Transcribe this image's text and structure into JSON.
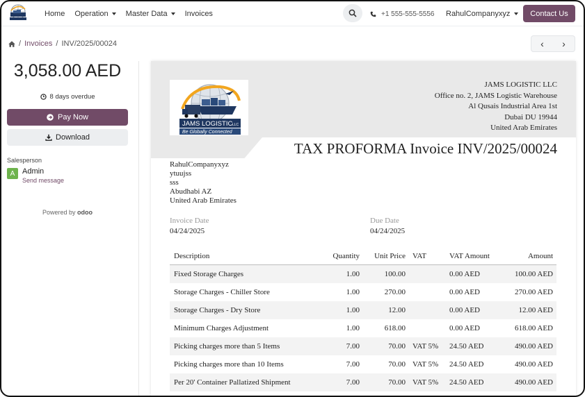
{
  "nav": {
    "items": [
      {
        "label": "Home",
        "dropdown": false
      },
      {
        "label": "Operation",
        "dropdown": true
      },
      {
        "label": "Master Data",
        "dropdown": true
      },
      {
        "label": "Invoices",
        "dropdown": false
      }
    ],
    "phone": "+1 555-555-5556",
    "company": "RahulCompanyxyz",
    "contact_label": "Contact Us"
  },
  "breadcrumb": {
    "invoices": "Invoices",
    "current": "INV/2025/00024"
  },
  "sidebar": {
    "amount": "3,058.00 AED",
    "overdue": "8 days overdue",
    "pay_now": "Pay Now",
    "download": "Download",
    "salesperson_label": "Salesperson",
    "avatar_letter": "A",
    "salesperson_name": "Admin",
    "send_message": "Send message",
    "powered_by": "Powered by",
    "powered_brand": "odoo"
  },
  "document": {
    "logo_text_1": "JAMS LOGISTIC",
    "logo_text_2": "LLC",
    "logo_text_3": "Be Globally Connected",
    "company_lines": [
      "JAMS LOGISTIC LLC",
      "Office no. 2, JAMS Logistic Warehouse",
      "Al Qusais Industrial Area 1st",
      "Dubai DU 19944",
      "United Arab Emirates"
    ],
    "title": "TAX PROFORMA Invoice INV/2025/00024",
    "customer_lines": [
      "RahulCompanyxyz",
      "ytuujss",
      "sss",
      "Abudhabi AZ",
      "United Arab Emirates"
    ],
    "invoice_date_label": "Invoice Date",
    "invoice_date": "04/24/2025",
    "due_date_label": "Due Date",
    "due_date": "04/24/2025",
    "columns": {
      "description": "Description",
      "quantity": "Quantity",
      "unit_price": "Unit Price",
      "vat": "VAT",
      "vat_amount": "VAT Amount",
      "amount": "Amount"
    },
    "lines": [
      {
        "description": "Fixed Storage Charges",
        "quantity": "1.00",
        "unit_price": "100.00",
        "vat": "",
        "vat_amount": "0.00 AED",
        "amount": "100.00 AED"
      },
      {
        "description": "Storage Charges - Chiller Store",
        "quantity": "1.00",
        "unit_price": "270.00",
        "vat": "",
        "vat_amount": "0.00 AED",
        "amount": "270.00 AED"
      },
      {
        "description": "Storage Charges - Dry Store",
        "quantity": "1.00",
        "unit_price": "12.00",
        "vat": "",
        "vat_amount": "0.00 AED",
        "amount": "12.00 AED"
      },
      {
        "description": "Minimum Charges Adjustment",
        "quantity": "1.00",
        "unit_price": "618.00",
        "vat": "",
        "vat_amount": "0.00 AED",
        "amount": "618.00 AED"
      },
      {
        "description": "Picking charges more than 5 Items",
        "quantity": "7.00",
        "unit_price": "70.00",
        "vat": "VAT 5%",
        "vat_amount": "24.50 AED",
        "amount": "490.00 AED"
      },
      {
        "description": "Picking charges more than 10 Items",
        "quantity": "7.00",
        "unit_price": "70.00",
        "vat": "VAT 5%",
        "vat_amount": "24.50 AED",
        "amount": "490.00 AED"
      },
      {
        "description": "Per 20' Container Pallatized Shipment",
        "quantity": "7.00",
        "unit_price": "70.00",
        "vat": "VAT 5%",
        "vat_amount": "24.50 AED",
        "amount": "490.00 AED"
      }
    ]
  },
  "colors": {
    "brand": "#714b67",
    "avatar": "#6eb34d",
    "header_band": "#e9e9e9"
  },
  "icons": {
    "home": "home-icon",
    "search": "search-icon",
    "phone": "phone-icon",
    "clock": "clock-icon",
    "pay": "arrow-circle-icon",
    "download": "download-icon",
    "prev": "chevron-left-icon",
    "next": "chevron-right-icon"
  }
}
